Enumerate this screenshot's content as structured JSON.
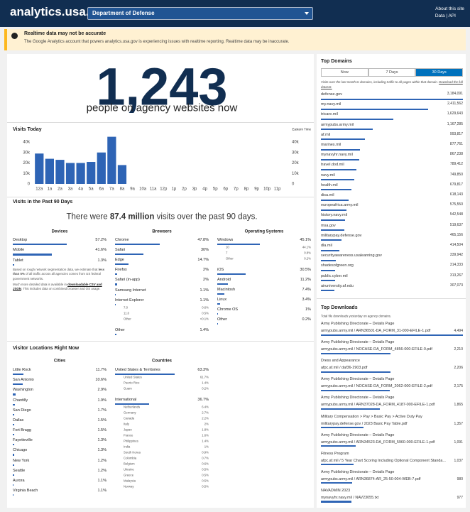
{
  "header": {
    "logo": "analytics.usa.gov",
    "agency": "Department of Defense",
    "about": "About this site",
    "data_api": "Data | API"
  },
  "alert": {
    "title": "Realtime data may not be accurate",
    "body": "The Google Analytics account that powers analytics.usa.gov is experiencing issues with realtime reporting. Realtime data may be inaccurate."
  },
  "realtime": {
    "count": "1,243",
    "caption": "people on agency websites now"
  },
  "visits_today": {
    "title": "Visits Today",
    "note": "Eastern Time",
    "chart_data": {
      "type": "bar",
      "categories": [
        "12a",
        "1a",
        "2a",
        "3a",
        "4a",
        "5a",
        "6a",
        "7a",
        "8a",
        "9a",
        "10a",
        "11a",
        "12p",
        "1p",
        "2p",
        "3p",
        "4p",
        "5p",
        "6p",
        "7p",
        "8p",
        "9p",
        "10p",
        "11p"
      ],
      "values": [
        29000,
        24000,
        23000,
        20000,
        20000,
        21000,
        30000,
        45000,
        18000,
        null,
        null,
        null,
        null,
        null,
        null,
        null,
        null,
        null,
        null,
        null,
        null,
        null,
        null,
        null
      ],
      "color": "#2e64b5",
      "ylim": [
        0,
        45000
      ],
      "yticks": [
        0,
        {
          "value": 10000,
          "label": "10k"
        },
        {
          "value": 20000,
          "label": "20k"
        },
        {
          "value": 30000,
          "label": "30k"
        },
        {
          "value": 40000,
          "label": "40k"
        }
      ]
    }
  },
  "visits_90": {
    "title": "Visits in the Past 90 Days",
    "summary": {
      "before": "There were",
      "total": "87.4 million",
      "after": "visits over the past 90 days."
    },
    "devices": {
      "title": "Devices",
      "rows": [
        {
          "name": "Desktop",
          "value": 57.2,
          "label": "57.2%"
        },
        {
          "name": "Mobile",
          "value": 41.6,
          "label": "41.6%"
        },
        {
          "name": "Tablet",
          "value": 1.3,
          "label": "1.3%"
        }
      ]
    },
    "note1": {
      "before": "Based on rough network segmentation data, we estimate that",
      "bold": "less than 5%",
      "after": "of all traffic across all agencies comes from US federal government networks."
    },
    "note2": {
      "before": "Much more detailed data is available in",
      "link": "downloadable CSV and JSON",
      "after": ". This includes data on combined browser and OS usage."
    },
    "browsers": {
      "title": "Browsers",
      "rows": [
        {
          "name": "Chrome",
          "value": 47.8,
          "label": "47.8%"
        },
        {
          "name": "Safari",
          "value": 30,
          "label": "30%"
        },
        {
          "name": "Edge",
          "value": 14.7,
          "label": "14.7%"
        },
        {
          "name": "Firefox",
          "value": 2,
          "label": "2%"
        },
        {
          "name": "Safari (in-app)",
          "value": 2,
          "label": "2%"
        },
        {
          "name": "Samsung Internet",
          "value": 1.1,
          "label": "1.1%"
        },
        {
          "name": "Internet Explorer",
          "value": 1.1,
          "label": "1.1%",
          "sub": [
            {
              "name": "7.0",
              "label": "0.6%"
            },
            {
              "name": "11.0",
              "label": "0.5%"
            },
            {
              "name": "Other",
              "label": "<0.1%"
            }
          ]
        },
        {
          "name": "Other",
          "value": 1.4,
          "label": "1.4%"
        }
      ]
    },
    "os": {
      "title": "Operating Systems",
      "rows": [
        {
          "name": "Windows",
          "value": 45.1,
          "label": "45.1%",
          "sub": [
            {
              "name": "10",
              "label": "44.1%"
            },
            {
              "name": "7",
              "label": "0.8%"
            },
            {
              "name": "Other",
              "label": "0.2%"
            }
          ]
        },
        {
          "name": "iOS",
          "value": 30.5,
          "label": "30.5%"
        },
        {
          "name": "Android",
          "value": 11.2,
          "label": "11.2%"
        },
        {
          "name": "Macintosh",
          "value": 7.4,
          "label": "7.4%"
        },
        {
          "name": "Linux",
          "value": 3.4,
          "label": "3.4%"
        },
        {
          "name": "Chrome OS",
          "value": 1,
          "label": "1%"
        },
        {
          "name": "Other",
          "value": 0.2,
          "label": "0.2%"
        }
      ]
    }
  },
  "locations": {
    "title": "Visitor Locations Right Now",
    "cities": {
      "title": "Cities",
      "rows": [
        {
          "name": "Little Rock",
          "value": 11.7,
          "label": "11.7%"
        },
        {
          "name": "San Antonio",
          "value": 10.6,
          "label": "10.6%"
        },
        {
          "name": "Washington",
          "value": 2.9,
          "label": "2.9%"
        },
        {
          "name": "Chantilly",
          "value": 1.9,
          "label": "1.9%"
        },
        {
          "name": "San Diego",
          "value": 1.7,
          "label": "1.7%"
        },
        {
          "name": "Dallas",
          "value": 1.5,
          "label": "1.5%"
        },
        {
          "name": "Fort Bragg",
          "value": 1.5,
          "label": "1.5%"
        },
        {
          "name": "Fayetteville",
          "value": 1.3,
          "label": "1.3%"
        },
        {
          "name": "Chicago",
          "value": 1.3,
          "label": "1.3%"
        },
        {
          "name": "New York",
          "value": 1.2,
          "label": "1.2%"
        },
        {
          "name": "Seattle",
          "value": 1.2,
          "label": "1.2%"
        },
        {
          "name": "Aurora",
          "value": 1.1,
          "label": "1.1%"
        },
        {
          "name": "Virginia Beach",
          "value": 1.1,
          "label": "1.1%"
        }
      ]
    },
    "countries": {
      "title": "Countries",
      "rows": [
        {
          "name": "United States & Territories",
          "value": 63.3,
          "label": "63.3%",
          "sub": [
            {
              "name": "United States",
              "label": "61.7%"
            },
            {
              "name": "Puerto Rico",
              "label": "1.4%"
            },
            {
              "name": "Guam",
              "label": "0.2%"
            }
          ]
        },
        {
          "name": "International",
          "value": 36.7,
          "label": "36.7%",
          "sub": [
            {
              "name": "Netherlands",
              "label": "6.4%"
            },
            {
              "name": "Germany",
              "label": "2.7%"
            },
            {
              "name": "Canada",
              "label": "2.2%"
            },
            {
              "name": "Italy",
              "label": "2%"
            },
            {
              "name": "Japan",
              "label": "1.8%"
            },
            {
              "name": "France",
              "label": "1.6%"
            },
            {
              "name": "Philippines",
              "label": "1.4%"
            },
            {
              "name": "India",
              "label": "1%"
            },
            {
              "name": "South Korea",
              "label": "0.9%"
            },
            {
              "name": "Colombia",
              "label": "0.7%"
            },
            {
              "name": "Belgium",
              "label": "0.6%"
            },
            {
              "name": "Ukraine",
              "label": "0.5%"
            },
            {
              "name": "Greece",
              "label": "0.5%"
            },
            {
              "name": "Malaysia",
              "label": "0.5%"
            },
            {
              "name": "Norway",
              "label": "0.5%"
            }
          ]
        }
      ]
    }
  },
  "top_domains": {
    "title": "Top Domains",
    "tabs": [
      "Now",
      "7 Days",
      "30 Days"
    ],
    "active_tab": 2,
    "description": "Visits over the last month to domains, including traffic to all pages within that domain.",
    "download": "Download the full dataset.",
    "rows": [
      {
        "name": "defense.gov",
        "value": 3184091,
        "label": "3,184,091"
      },
      {
        "name": "my.navy.mil",
        "value": 2411562,
        "label": "2,411,562"
      },
      {
        "name": "tricare.mil",
        "value": 1629643,
        "label": "1,629,643"
      },
      {
        "name": "armypubs.army.mil",
        "value": 1167285,
        "label": "1,167,285"
      },
      {
        "name": "af.mil",
        "value": 993817,
        "label": "993,817"
      },
      {
        "name": "marines.mil",
        "value": 877761,
        "label": "877,761"
      },
      {
        "name": "mynavyhr.navy.mil",
        "value": 867238,
        "label": "867,238"
      },
      {
        "name": "travel.dod.mil",
        "value": 789412,
        "label": "789,412"
      },
      {
        "name": "navy.mil",
        "value": 749850,
        "label": "749,850"
      },
      {
        "name": "health.mil",
        "value": 679817,
        "label": "679,817"
      },
      {
        "name": "disa.mil",
        "value": 618143,
        "label": "618,143"
      },
      {
        "name": "europeafrica.army.mil",
        "value": 575550,
        "label": "575,550"
      },
      {
        "name": "history.navy.mil",
        "value": 542548,
        "label": "542,548"
      },
      {
        "name": "msa.gov",
        "value": 519637,
        "label": "519,637"
      },
      {
        "name": "militarypay.defense.gov",
        "value": 465156,
        "label": "465,156"
      },
      {
        "name": "dla.mil",
        "value": 414504,
        "label": "414,504"
      },
      {
        "name": "securityawareness.usalearning.gov",
        "value": 339942,
        "label": "339,942"
      },
      {
        "name": "shadesofgreen.org",
        "value": 314333,
        "label": "314,333"
      },
      {
        "name": "public.cyber.mil",
        "value": 313267,
        "label": "313,267"
      },
      {
        "name": "airuniversity.af.edu",
        "value": 307073,
        "label": "307,073"
      }
    ]
  },
  "top_downloads": {
    "title": "Top Downloads",
    "description": "Total file downloads yesterday on agency domains.",
    "rows": [
      {
        "title": "Army Publishing Directorate – Details Page",
        "url": "armypubs.army.mil / ARN36501-DA_FORM_31-000-EFILE-1.pdf",
        "value": 4494,
        "label": "4,494"
      },
      {
        "title": "Army Publishing Directorate – Details Page",
        "url": "armypubs.army.mil / NOCASE-DA_FORM_4856-000-EFILE-0.pdf",
        "value": 2210,
        "label": "2,210"
      },
      {
        "title": "Dress and Appearance",
        "url": "afpc.af.mil / daf36-2903.pdf",
        "value": 2206,
        "label": "2,206"
      },
      {
        "title": "Army Publishing Directorate – Details Page",
        "url": "armypubs.army.mil / NOCASE-DA_FORM_2062-000-EFILE-2.pdf",
        "value": 2175,
        "label": "2,175"
      },
      {
        "title": "Army Publishing Directorate – Details Page",
        "url": "armypubs.army.mil / ARN37028-DA_FORM_4187-000-EFILE-1.pdf",
        "value": 1865,
        "label": "1,865"
      },
      {
        "title": "Military Compensation > Pay > Basic Pay > Active Duty Pay",
        "url": "militarypay.defense.gov / 2023 Basic Pay Table.pdf",
        "value": 1357,
        "label": "1,357"
      },
      {
        "title": "Army Publishing Directorate – Details Page",
        "url": "armypubs.army.mil / ARN34523-DA_FORM_5960-000-EFILE-1.pdf",
        "value": 1091,
        "label": "1,091"
      },
      {
        "title": "Fitness Program",
        "url": "afpc.af.mil / 5 Year Chart Scoring Including Optional Component Standa...",
        "value": 1037,
        "label": "1,037"
      },
      {
        "title": "Army Publishing Directorate – Details Page",
        "url": "armypubs.army.mil / ARN36874-AR_25-50-004-WEB-7.pdf",
        "value": 980,
        "label": "980"
      },
      {
        "title": "NAVADMIN 2023",
        "url": "mynavyhr.navy.mil / NAV23055.txt",
        "value": 977,
        "label": "977"
      }
    ]
  }
}
